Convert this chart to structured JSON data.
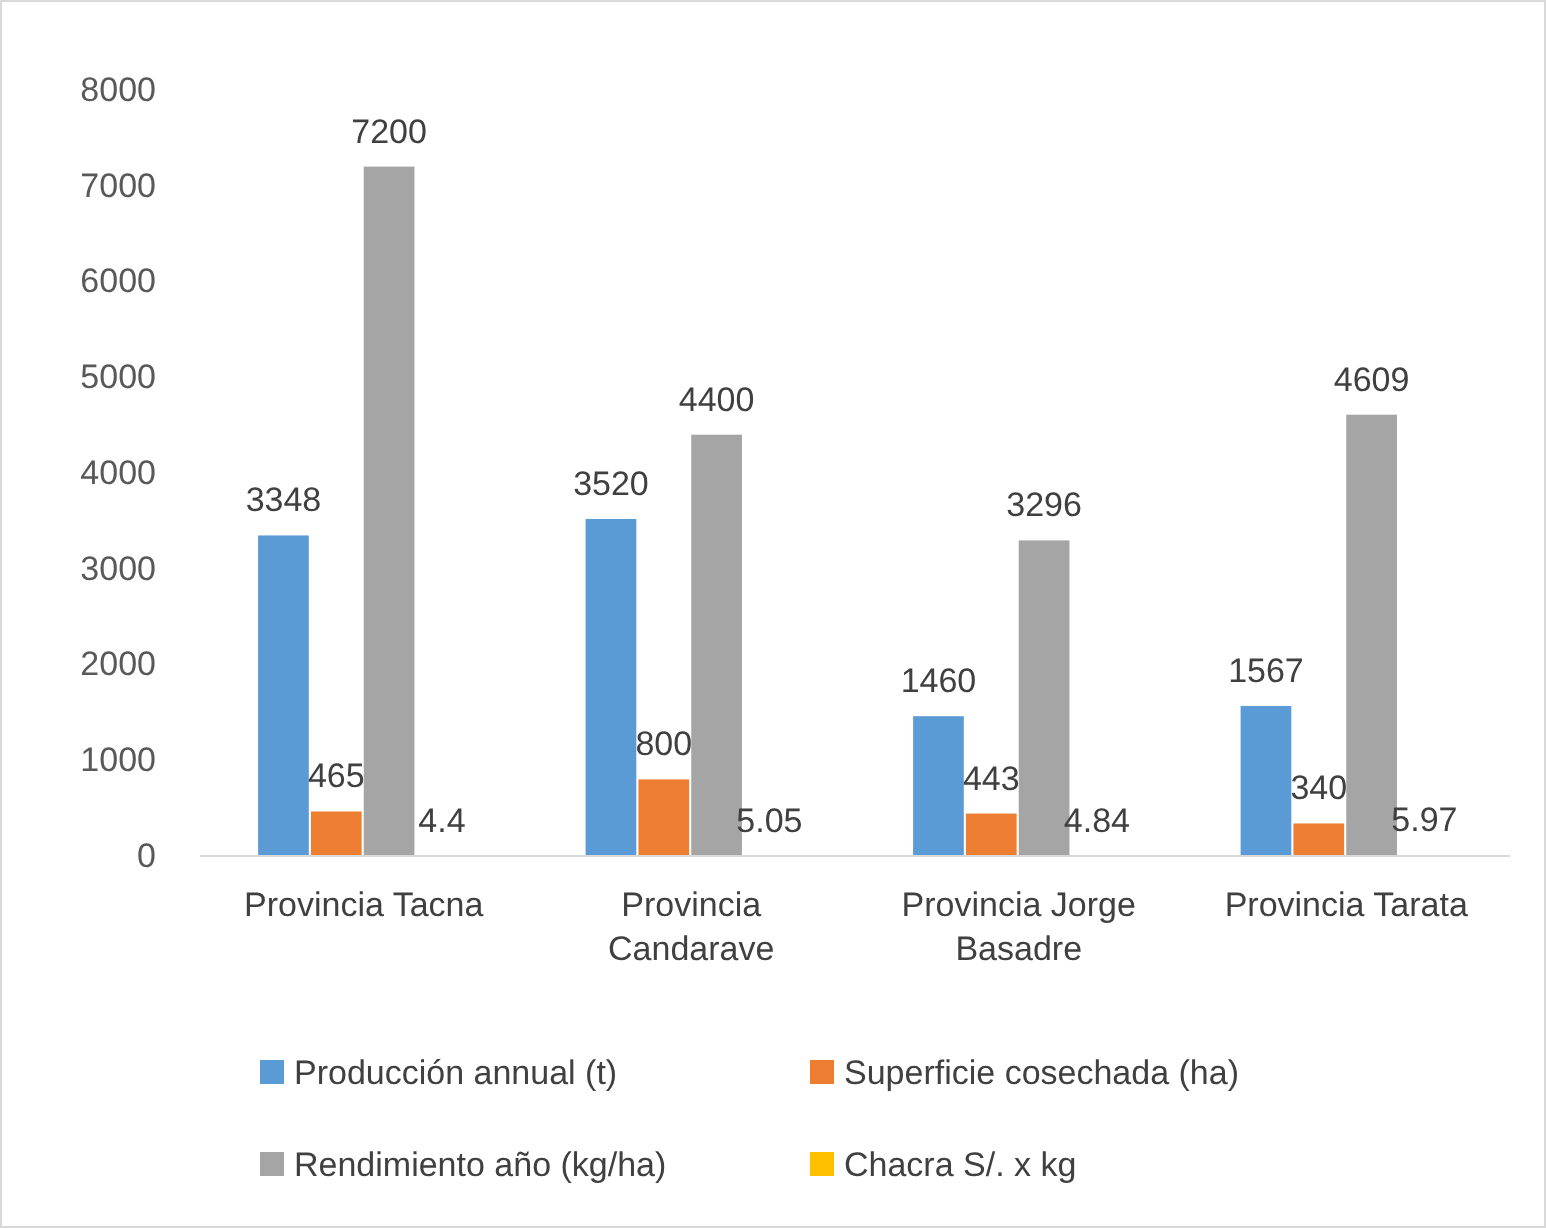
{
  "chart_data": {
    "type": "bar",
    "categories": [
      "Provincia Tacna",
      "Provincia Candarave",
      "Provincia Jorge Basadre",
      "Provincia Tarata"
    ],
    "series": [
      {
        "name": "Producción annual (t)",
        "color": "#5b9bd5",
        "values": [
          3348,
          3520,
          1460,
          1567
        ]
      },
      {
        "name": "Superficie cosechada (ha)",
        "color": "#ed7d31",
        "values": [
          465,
          800,
          443,
          340
        ]
      },
      {
        "name": "Rendimiento año (kg/ha)",
        "color": "#a5a5a5",
        "values": [
          7200,
          4400,
          3296,
          4609
        ]
      },
      {
        "name": "Chacra S/. x kg",
        "color": "#ffc000",
        "values": [
          4.4,
          5.05,
          4.84,
          5.97
        ]
      }
    ],
    "ylim": [
      0,
      8000
    ],
    "yticks": [
      0,
      1000,
      2000,
      3000,
      4000,
      5000,
      6000,
      7000,
      8000
    ],
    "data_labels": true,
    "legend": "bottom"
  }
}
